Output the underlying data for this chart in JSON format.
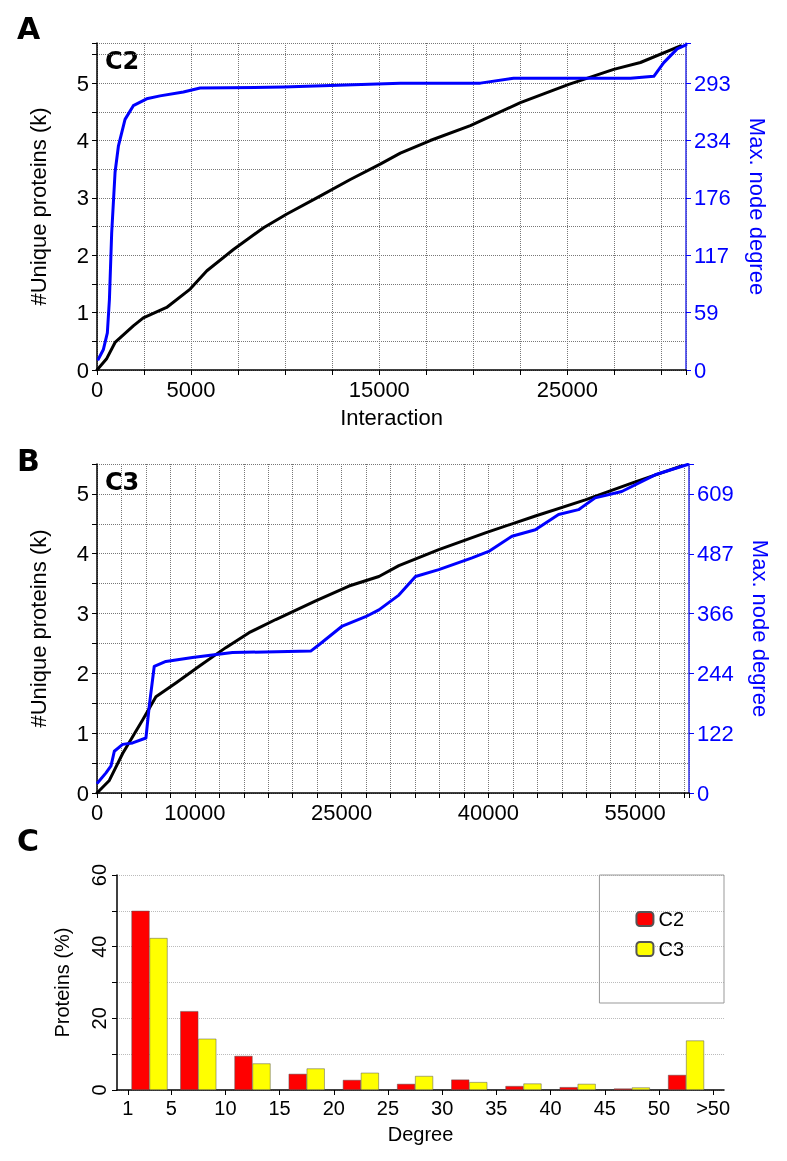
{
  "chart_data": [
    {
      "type": "line",
      "title": "A",
      "annotations": [
        "C2"
      ],
      "xlabel": "Interaction",
      "ylabel": "#Unique proteins (k)",
      "y2label": "Max. node degree",
      "xlim": [
        0,
        31300
      ],
      "xticks": [
        0,
        {
          "value": 2500,
          "label": null
        },
        5000,
        {
          "value": 7500,
          "label": null
        },
        {
          "value": 10000,
          "label": null
        },
        {
          "value": 12500,
          "label": null
        },
        15000,
        {
          "value": 17500,
          "label": null
        },
        {
          "value": 20000,
          "label": null
        },
        {
          "value": 22500,
          "label": null
        },
        25000,
        {
          "value": 27500,
          "label": null
        },
        {
          "value": 30000,
          "label": null
        }
      ],
      "ylim": [
        0,
        5.7
      ],
      "yticks": [
        0,
        {
          "value": 0.5,
          "label": null
        },
        1,
        {
          "value": 1.5,
          "label": null
        },
        2,
        {
          "value": 2.5,
          "label": null
        },
        3,
        {
          "value": 3.5,
          "label": null
        },
        4,
        {
          "value": 4.5,
          "label": null
        },
        5,
        {
          "value": 5.5,
          "label": null
        }
      ],
      "y2lim": [
        0,
        334
      ],
      "y2ticks": [
        0,
        59,
        117,
        176,
        234,
        293
      ],
      "grid": true,
      "series": [
        {
          "color": "#000000",
          "x": [
            0,
            500,
            960,
            1930,
            2460,
            3700,
            4950,
            5840,
            7250,
            8850,
            10090,
            11680,
            13460,
            15050,
            16120,
            17710,
            19840,
            22500,
            25070,
            27460,
            28880,
            31010
          ],
          "values": [
            0,
            0.19,
            0.48,
            0.77,
            0.91,
            1.09,
            1.41,
            1.73,
            2.1,
            2.48,
            2.72,
            3.0,
            3.32,
            3.59,
            3.78,
            4.0,
            4.26,
            4.66,
            4.98,
            5.24,
            5.36,
            5.65
          ]
        },
        {
          "color": "#0000ff",
          "axis": "y2",
          "x": [
            70,
            340,
            550,
            660,
            780,
            960,
            1140,
            1490,
            1930,
            2640,
            3350,
            4590,
            5480,
            9910,
            16120,
            20370,
            22140,
            28350,
            29590,
            30120,
            30830,
            31300
          ],
          "values": [
            11,
            21,
            38,
            72,
            140,
            202,
            229,
            256,
            270,
            277,
            280,
            284,
            288,
            289,
            293,
            293,
            298,
            298,
            300,
            314,
            328,
            332
          ]
        }
      ]
    },
    {
      "type": "line",
      "title": "B",
      "annotations": [
        "C3"
      ],
      "ylabel": "#Unique proteins (k)",
      "y2label": "Max. node degree",
      "xlim": [
        0,
        60500
      ],
      "xticks": [
        0,
        {
          "value": 2500,
          "label": null
        },
        {
          "value": 5000,
          "label": null
        },
        {
          "value": 7500,
          "label": null
        },
        10000,
        {
          "value": 12500,
          "label": null
        },
        {
          "value": 15000,
          "label": null
        },
        {
          "value": 17500,
          "label": null
        },
        {
          "value": 20000,
          "label": null
        },
        {
          "value": 22500,
          "label": null
        },
        25000,
        {
          "value": 27500,
          "label": null
        },
        {
          "value": 30000,
          "label": null
        },
        {
          "value": 32500,
          "label": null
        },
        {
          "value": 35000,
          "label": null
        },
        {
          "value": 37500,
          "label": null
        },
        40000,
        {
          "value": 42500,
          "label": null
        },
        {
          "value": 45000,
          "label": null
        },
        {
          "value": 47500,
          "label": null
        },
        {
          "value": 50000,
          "label": null
        },
        {
          "value": 52500,
          "label": null
        },
        55000,
        {
          "value": 57500,
          "label": null
        },
        {
          "value": 60000,
          "label": null
        }
      ],
      "ylim": [
        0,
        5.5
      ],
      "yticks": [
        0,
        {
          "value": 0.5,
          "label": null
        },
        1,
        {
          "value": 1.5,
          "label": null
        },
        2,
        {
          "value": 2.5,
          "label": null
        },
        3,
        {
          "value": 3.5,
          "label": null
        },
        4,
        {
          "value": 4.5,
          "label": null
        },
        5
      ],
      "y2lim": [
        0,
        670
      ],
      "y2ticks": [
        0,
        122,
        244,
        366,
        487,
        609
      ],
      "grid": true,
      "series": [
        {
          "color": "#000000",
          "x": [
            0,
            1260,
            2620,
            4660,
            6020,
            8060,
            10440,
            13160,
            15540,
            18270,
            22350,
            25750,
            28810,
            30850,
            34930,
            39690,
            44800,
            49900,
            54650,
            59760
          ],
          "values": [
            0,
            0.21,
            0.66,
            1.22,
            1.61,
            1.84,
            2.12,
            2.43,
            2.68,
            2.9,
            3.21,
            3.46,
            3.62,
            3.8,
            4.07,
            4.35,
            4.63,
            4.9,
            5.18,
            5.47
          ]
        },
        {
          "color": "#0000ff",
          "axis": "y2",
          "x": [
            70,
            920,
            1430,
            1770,
            2620,
            3640,
            5000,
            5340,
            5850,
            7040,
            9760,
            13840,
            21840,
            22690,
            25070,
            27450,
            28810,
            30850,
            32550,
            34930,
            38330,
            40030,
            42410,
            44800,
            47170,
            49210,
            50910,
            53630,
            57040,
            60370
          ],
          "values": [
            21,
            41,
            55,
            85,
            99,
            102,
            112,
            177,
            258,
            268,
            276,
            286,
            289,
            302,
            340,
            359,
            373,
            403,
            441,
            455,
            479,
            492,
            523,
            536,
            567,
            577,
            601,
            614,
            648,
            669
          ]
        }
      ]
    },
    {
      "type": "bar",
      "title": "C",
      "xlabel": "Degree",
      "ylabel": "Proteins (%)",
      "xlim": [
        0,
        56
      ],
      "xticks": [
        1,
        5,
        10,
        15,
        20,
        25,
        30,
        35,
        40,
        45,
        50,
        {
          "value": 55,
          "label": ">50"
        }
      ],
      "ylim": [
        0,
        60
      ],
      "yticks": [
        0,
        {
          "value": 10,
          "label": null
        },
        20,
        {
          "value": 30,
          "label": null
        },
        40,
        {
          "value": 50,
          "label": null
        },
        60
      ],
      "grid": "y",
      "legend": "top right",
      "series": [
        {
          "name": "C2",
          "color": "#ff0000",
          "x": [
            3,
            7.5,
            12.5,
            17.5,
            22.5,
            27.5,
            32.5,
            37.5,
            42.5,
            47.5,
            52.5
          ],
          "values": [
            50,
            22.0,
            9.5,
            4.5,
            2.8,
            1.7,
            2.9,
            1.1,
            0.8,
            0.4,
            4.2
          ]
        },
        {
          "name": "C3",
          "color": "#ffff00",
          "x": [
            3,
            7.5,
            12.5,
            17.5,
            22.5,
            27.5,
            32.5,
            37.5,
            42.5,
            47.5,
            52.5
          ],
          "values": [
            42.4,
            14.3,
            7.4,
            6.0,
            4.8,
            3.9,
            2.2,
            1.8,
            1.7,
            0.7,
            13.8
          ]
        }
      ]
    }
  ]
}
